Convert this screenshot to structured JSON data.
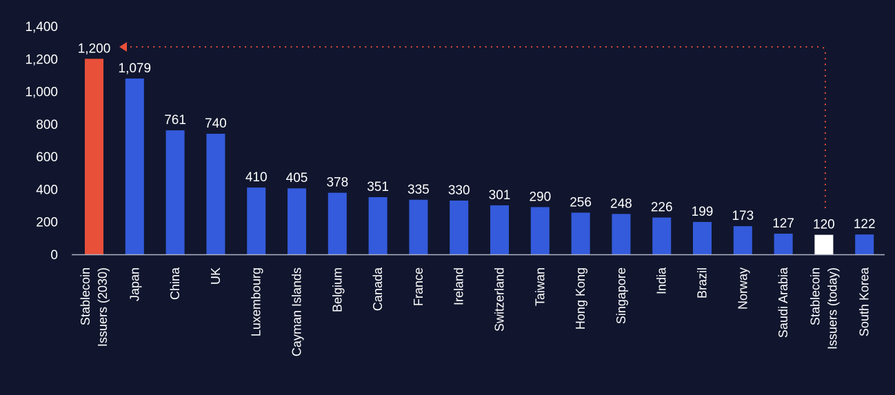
{
  "chart_data": {
    "type": "bar",
    "title": "",
    "xlabel": "",
    "ylabel": "",
    "ylim": [
      0,
      1400
    ],
    "yticks": [
      0,
      200,
      400,
      600,
      800,
      1000,
      1200,
      1400
    ],
    "ytick_labels": [
      "0",
      "200",
      "400",
      "600",
      "800",
      "1,000",
      "1,200",
      "1,400"
    ],
    "grid": false,
    "legend": null,
    "categories": [
      [
        "Stablecoin",
        "Issuers (2030)"
      ],
      [
        "Japan"
      ],
      [
        "China"
      ],
      [
        "UK"
      ],
      [
        "Luxembourg"
      ],
      [
        "Cayman Islands"
      ],
      [
        "Belgium"
      ],
      [
        "Canada"
      ],
      [
        "France"
      ],
      [
        "Ireland"
      ],
      [
        "Switzerland"
      ],
      [
        "Taiwan"
      ],
      [
        "Hong Kong"
      ],
      [
        "Singapore"
      ],
      [
        "India"
      ],
      [
        "Brazil"
      ],
      [
        "Norway"
      ],
      [
        "Saudi Arabia"
      ],
      [
        "Stablecoin",
        "Issuers (today)"
      ],
      [
        "South Korea"
      ]
    ],
    "values": [
      1200,
      1079,
      761,
      740,
      410,
      405,
      378,
      351,
      335,
      330,
      301,
      290,
      256,
      248,
      226,
      199,
      173,
      127,
      120,
      122
    ],
    "value_labels": [
      "1,200",
      "1,079",
      "761",
      "740",
      "410",
      "405",
      "378",
      "351",
      "335",
      "330",
      "301",
      "290",
      "256",
      "248",
      "226",
      "199",
      "173",
      "127",
      "120",
      "122"
    ],
    "bar_colors": [
      "#e8503a",
      "#345bdc",
      "#345bdc",
      "#345bdc",
      "#345bdc",
      "#345bdc",
      "#345bdc",
      "#345bdc",
      "#345bdc",
      "#345bdc",
      "#345bdc",
      "#345bdc",
      "#345bdc",
      "#345bdc",
      "#345bdc",
      "#345bdc",
      "#345bdc",
      "#345bdc",
      "#ffffff",
      "#345bdc"
    ],
    "annotation": {
      "type": "dotted-arrow",
      "from_category_index": 18,
      "to_category_index": 0,
      "color": "#e8503a"
    }
  },
  "colors": {
    "background": "#11162e",
    "axis": "#b0b4c4",
    "text": "#ffffff"
  }
}
